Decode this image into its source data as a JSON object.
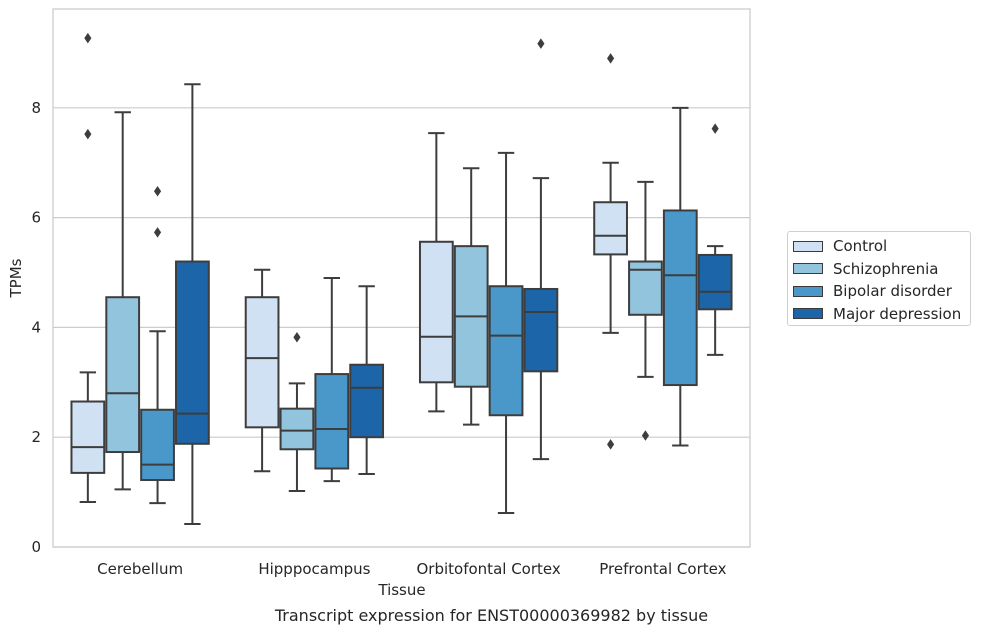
{
  "chart_data": {
    "type": "box",
    "title": "",
    "xlabel": "Tissue",
    "ylabel": "TPMs",
    "ylim": [
      0,
      9.8
    ],
    "yticks": [
      0,
      2,
      4,
      6,
      8
    ],
    "grid": "horizontal",
    "legend_position": "right",
    "categories": [
      "Cerebellum",
      "Hipppocampus",
      "Orbitofontal Cortex",
      "Prefrontal Cortex"
    ],
    "series": [
      {
        "name": "Control",
        "color": "#cfe1f2",
        "boxes": [
          {
            "whisker_low": 0.82,
            "q1": 1.35,
            "median": 1.82,
            "q3": 2.65,
            "whisker_high": 3.18,
            "outliers": [
              7.52,
              9.27
            ]
          },
          {
            "whisker_low": 1.38,
            "q1": 2.18,
            "median": 3.44,
            "q3": 4.55,
            "whisker_high": 5.05,
            "outliers": []
          },
          {
            "whisker_low": 2.47,
            "q1": 3.0,
            "median": 3.83,
            "q3": 5.56,
            "whisker_high": 7.54,
            "outliers": []
          },
          {
            "whisker_low": 3.9,
            "q1": 5.33,
            "median": 5.67,
            "q3": 6.28,
            "whisker_high": 7.0,
            "outliers": [
              1.87,
              8.9
            ]
          }
        ]
      },
      {
        "name": "Schizophrenia",
        "color": "#93c4de",
        "boxes": [
          {
            "whisker_low": 1.05,
            "q1": 1.73,
            "median": 2.8,
            "q3": 4.55,
            "whisker_high": 7.92,
            "outliers": []
          },
          {
            "whisker_low": 1.02,
            "q1": 1.78,
            "median": 2.12,
            "q3": 2.52,
            "whisker_high": 2.98,
            "outliers": [
              3.82
            ]
          },
          {
            "whisker_low": 2.23,
            "q1": 2.92,
            "median": 4.2,
            "q3": 5.48,
            "whisker_high": 6.9,
            "outliers": []
          },
          {
            "whisker_low": 3.1,
            "q1": 4.23,
            "median": 5.05,
            "q3": 5.2,
            "whisker_high": 6.65,
            "outliers": [
              2.03
            ]
          }
        ]
      },
      {
        "name": "Bipolar disorder",
        "color": "#4a98c9",
        "boxes": [
          {
            "whisker_low": 0.8,
            "q1": 1.22,
            "median": 1.5,
            "q3": 2.5,
            "whisker_high": 3.93,
            "outliers": [
              5.73,
              6.48
            ]
          },
          {
            "whisker_low": 1.2,
            "q1": 1.43,
            "median": 2.15,
            "q3": 3.15,
            "whisker_high": 4.9,
            "outliers": []
          },
          {
            "whisker_low": 0.62,
            "q1": 2.4,
            "median": 3.85,
            "q3": 4.75,
            "whisker_high": 7.18,
            "outliers": []
          },
          {
            "whisker_low": 1.85,
            "q1": 2.95,
            "median": 4.95,
            "q3": 6.13,
            "whisker_high": 8.0,
            "outliers": []
          }
        ]
      },
      {
        "name": "Major depression",
        "color": "#1d65a9",
        "boxes": [
          {
            "whisker_low": 0.42,
            "q1": 1.88,
            "median": 2.43,
            "q3": 5.2,
            "whisker_high": 8.43,
            "outliers": []
          },
          {
            "whisker_low": 1.33,
            "q1": 2.0,
            "median": 2.9,
            "q3": 3.32,
            "whisker_high": 4.75,
            "outliers": []
          },
          {
            "whisker_low": 1.6,
            "q1": 3.2,
            "median": 4.28,
            "q3": 4.7,
            "whisker_high": 6.72,
            "outliers": [
              9.17
            ]
          },
          {
            "whisker_low": 3.5,
            "q1": 4.33,
            "median": 4.65,
            "q3": 5.32,
            "whisker_high": 5.48,
            "outliers": [
              7.62
            ]
          }
        ]
      }
    ]
  },
  "caption": "Transcript expression for ENST00000369982 by tissue"
}
